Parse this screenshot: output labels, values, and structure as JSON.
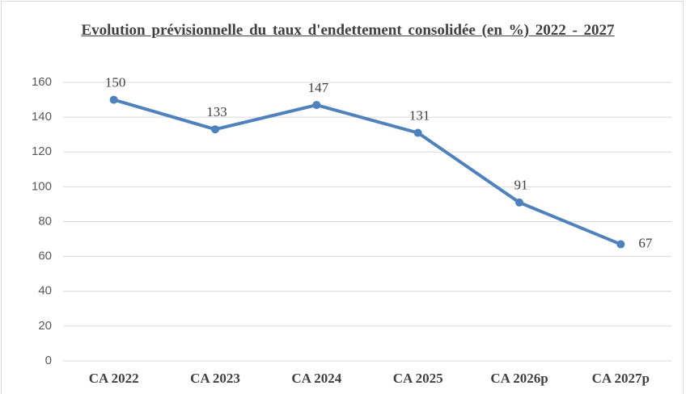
{
  "chart_data": {
    "type": "line",
    "title": "Evolution prévisionnelle du taux d'endettement consolidée (en %) 2022 - 2027",
    "categories": [
      "CA 2022",
      "CA 2023",
      "CA 2024",
      "CA 2025",
      "CA 2026p",
      "CA 2027p"
    ],
    "values": [
      150,
      133,
      147,
      131,
      91,
      67
    ],
    "color": "#4f81bd",
    "ylim": [
      0,
      160
    ],
    "yticks": [
      0,
      20,
      40,
      60,
      80,
      100,
      120,
      140,
      160
    ],
    "grid": true
  }
}
